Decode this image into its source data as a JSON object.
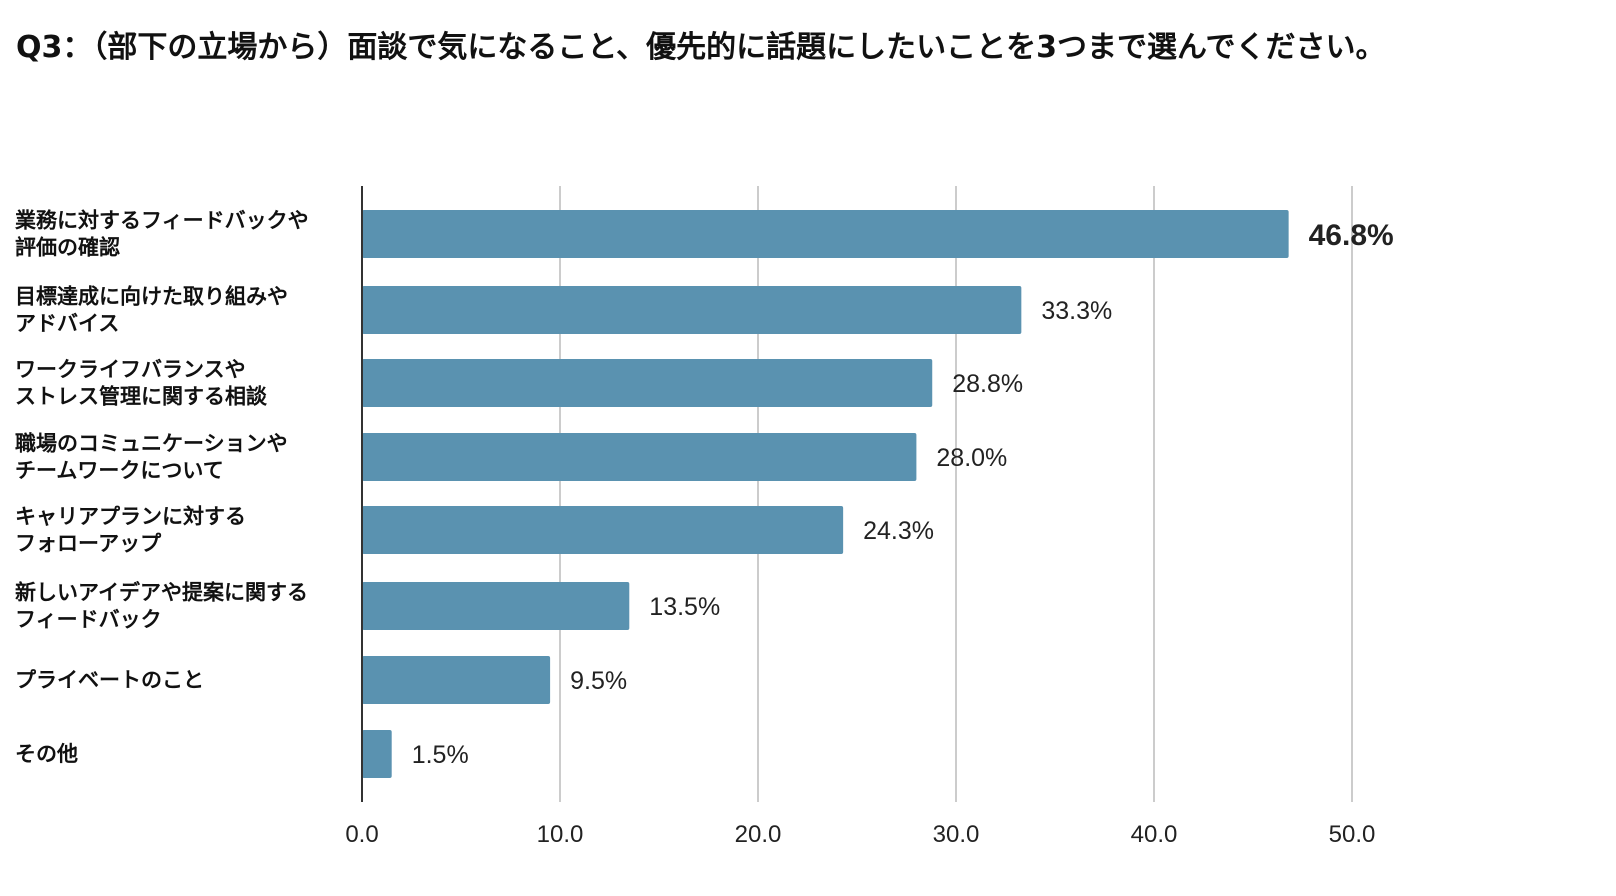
{
  "colors": {
    "bar": "#5a92b0",
    "highlight_label": "#1a1adf",
    "grid": "#cccccc",
    "axis": "#333333"
  },
  "chart_data": {
    "type": "bar",
    "orientation": "horizontal",
    "title": "Q3：（部下の立場から）面談で気になること、優先的に話題にしたいことを3つまで選んでください。",
    "categories": [
      [
        "業務に対するフィードバックや",
        "評価の確認"
      ],
      [
        "目標達成に向けた取り組みや",
        "アドバイス"
      ],
      [
        "ワークライフバランスや",
        "ストレス管理に関する相談"
      ],
      [
        "職場のコミュニケーションや",
        "チームワークについて"
      ],
      [
        "キャリアプランに対する",
        "フォローアップ"
      ],
      [
        "新しいアイデアや提案に関する",
        "フィードバック"
      ],
      [
        "プライベートのこと"
      ],
      [
        "その他"
      ]
    ],
    "values": [
      46.8,
      33.3,
      28.8,
      28.0,
      24.3,
      13.5,
      9.5,
      1.5
    ],
    "value_labels": [
      "46.8%",
      "33.3%",
      "28.8%",
      "28.0%",
      "24.3%",
      "13.5%",
      "9.5%",
      "1.5%"
    ],
    "highlight_index": 0,
    "xlim": [
      0,
      50
    ],
    "xticks": [
      0,
      10,
      20,
      30,
      40,
      50
    ],
    "xtick_labels": [
      "0.0",
      "10.0",
      "20.0",
      "30.0",
      "40.0",
      "50.0"
    ],
    "grid": true,
    "xlabel": "",
    "ylabel": ""
  }
}
